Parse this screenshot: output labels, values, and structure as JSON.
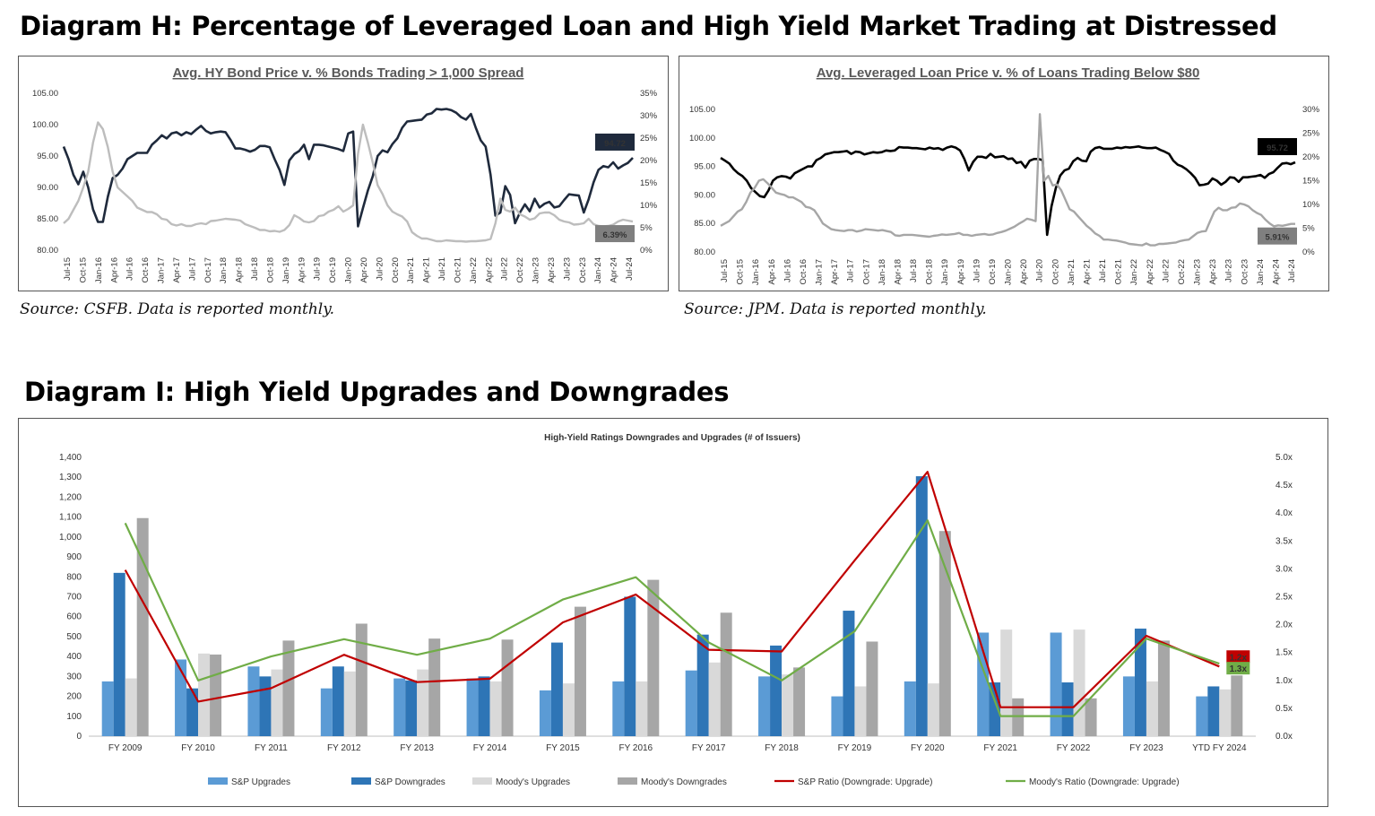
{
  "diagram_h": {
    "heading": "Diagram H: Percentage of Leveraged Loan and High Yield Market Trading at Distressed",
    "left": {
      "source": "Source: CSFB. Data is reported monthly."
    },
    "right": {
      "source": "Source: JPM. Data is reported monthly."
    }
  },
  "diagram_i": {
    "heading": "Diagram I: High Yield Upgrades and Downgrades"
  },
  "colors": {
    "hy_price": "#1f2a3c",
    "hy_pct": "#bdbdbd",
    "ll_price": "#000000",
    "ll_pct": "#a6a6a6",
    "sp_up": "#5b9bd5",
    "sp_down": "#2e75b6",
    "moody_up": "#d9d9d9",
    "moody_down": "#a6a6a6",
    "sp_ratio": "#c00000",
    "moody_ratio": "#70ad47"
  },
  "chart_data": [
    {
      "type": "line",
      "title": "Avg. HY Bond Price v. % Bonds Trading > 1,000 Spread",
      "x_ticks": [
        "Jul-15",
        "Oct-15",
        "Jan-16",
        "Apr-16",
        "Jul-16",
        "Oct-16",
        "Jan-17",
        "Apr-17",
        "Jul-17",
        "Oct-17",
        "Jan-18",
        "Apr-18",
        "Jul-18",
        "Oct-18",
        "Jan-19",
        "Apr-19",
        "Jul-19",
        "Oct-19",
        "Jan-20",
        "Apr-20",
        "Jul-20",
        "Oct-20",
        "Jan-21",
        "Apr-21",
        "Jul-21",
        "Oct-21",
        "Jan-22",
        "Apr-22",
        "Jul-22",
        "Oct-22",
        "Jan-23",
        "Apr-23",
        "Jul-23",
        "Oct-23",
        "Jan-24",
        "Apr-24",
        "Jul-24"
      ],
      "y_left": {
        "ticks": [
          "80.00",
          "85.00",
          "90.00",
          "95.00",
          "100.00",
          "105.00"
        ],
        "lim": [
          80,
          105
        ]
      },
      "y_right": {
        "ticks": [
          "0%",
          "5%",
          "10%",
          "15%",
          "20%",
          "25%",
          "30%",
          "35%"
        ],
        "lim": [
          0,
          35
        ]
      },
      "grid": false,
      "series": [
        {
          "axis": "left",
          "color": "#1f2a3c",
          "end_label": "94.72",
          "values": [
            96.5,
            94.5,
            92,
            90.5,
            92.5,
            90,
            86.5,
            84.5,
            84.5,
            88.5,
            91.5,
            92,
            93,
            94.5,
            95,
            95.5,
            95.5,
            95.5,
            96.8,
            97.5,
            98.3,
            97.8,
            98.6,
            98.8,
            98.3,
            98.8,
            98.5,
            99.2,
            99.8,
            99,
            98.6,
            98.8,
            98.9,
            98.8,
            97.6,
            96.2,
            96.2,
            96.0,
            95.7,
            96.0,
            96.6,
            96.6,
            96.4,
            94.5,
            92.8,
            90.4,
            94.3,
            95.3,
            95.8,
            96.8,
            94.5,
            96.8,
            96.8,
            96.7,
            96.5,
            96.3,
            96.1,
            95.8,
            98.6,
            98.9,
            83.8,
            86.7,
            89.5,
            91.8,
            95.0,
            95.9,
            95.6,
            96.9,
            97.8,
            99.5,
            100.5,
            100.6,
            100.7,
            100.8,
            101.6,
            101.8,
            102.5,
            102.4,
            102.5,
            102.3,
            101.9,
            101.2,
            100.8,
            101.7,
            99.5,
            97.5,
            96.5,
            92.0,
            85.5,
            86.0,
            90.2,
            88.8,
            84.3,
            86.0,
            87.3,
            86.2,
            88.2,
            86.8,
            87.4,
            87.7,
            86.8,
            87.0,
            88.0,
            88.9,
            88.8,
            88.7,
            86.0,
            88.1,
            90.8,
            92.8,
            93.4,
            93.2,
            94.0,
            93.0,
            93.5,
            93.9,
            94.72
          ]
        },
        {
          "axis": "right",
          "color": "#bdbdbd",
          "end_label": "6.39%",
          "values": [
            6.0,
            7.0,
            9.0,
            11.0,
            14.0,
            17.5,
            24.0,
            28.5,
            27.0,
            23.0,
            17.5,
            14.0,
            13.0,
            12.0,
            11.0,
            9.5,
            9.0,
            8.5,
            8.5,
            8.0,
            7.0,
            6.8,
            5.8,
            5.5,
            5.8,
            5.4,
            5.4,
            5.8,
            6.0,
            5.8,
            6.5,
            6.6,
            6.8,
            7.0,
            6.9,
            6.8,
            6.6,
            5.8,
            5.4,
            5.0,
            4.5,
            4.5,
            4.2,
            4.3,
            4.1,
            4.5,
            5.6,
            7.8,
            7.2,
            6.4,
            6.2,
            6.5,
            7.6,
            7.8,
            8.6,
            9.0,
            9.8,
            8.6,
            9.2,
            10.0,
            21.5,
            28.0,
            24.0,
            19.5,
            14.5,
            12.5,
            10.0,
            8.6,
            8.0,
            7.5,
            6.4,
            4.0,
            3.2,
            2.6,
            2.6,
            2.3,
            2.0,
            2.0,
            2.2,
            2.1,
            2.0,
            2.0,
            1.9,
            2.0,
            2.0,
            2.1,
            2.2,
            2.5,
            6.0,
            11.5,
            9.0,
            8.6,
            9.5,
            8.0,
            7.5,
            6.8,
            7.1,
            8.2,
            8.4,
            8.4,
            7.8,
            6.8,
            6.4,
            6.2,
            5.7,
            5.8,
            6.0,
            7.0,
            5.8,
            5.4,
            5.3,
            5.4,
            5.7,
            6.4,
            6.8,
            6.6,
            6.39
          ]
        }
      ]
    },
    {
      "type": "line",
      "title": "Avg. Leveraged Loan Price v. % of Loans Trading Below $80",
      "x_ticks": [
        "Jul-15",
        "Oct-15",
        "Jan-16",
        "Apr-16",
        "Jul-16",
        "Oct-16",
        "Jan-17",
        "Apr-17",
        "Jul-17",
        "Oct-17",
        "Jan-18",
        "Apr-18",
        "Jul-18",
        "Oct-18",
        "Jan-19",
        "Apr-19",
        "Jul-19",
        "Oct-19",
        "Jan-20",
        "Apr-20",
        "Jul-20",
        "Oct-20",
        "Jan-21",
        "Apr-21",
        "Jul-21",
        "Oct-21",
        "Jan-22",
        "Apr-22",
        "Jul-22",
        "Oct-22",
        "Jan-23",
        "Apr-23",
        "Jul-23",
        "Oct-23",
        "Jan-24",
        "Apr-24",
        "Jul-24"
      ],
      "y_left": {
        "ticks": [
          "80.00",
          "85.00",
          "90.00",
          "95.00",
          "100.00",
          "105.00"
        ],
        "lim": [
          80,
          105
        ]
      },
      "y_right": {
        "ticks": [
          "0%",
          "5%",
          "10%",
          "15%",
          "20%",
          "25%",
          "30%"
        ],
        "lim": [
          0,
          30
        ]
      },
      "grid": false,
      "series": [
        {
          "axis": "left",
          "color": "#000000",
          "end_label": "95.72",
          "values": [
            96.5,
            96.0,
            95.5,
            94.5,
            93.8,
            93.3,
            92.5,
            91.2,
            90.5,
            89.8,
            89.6,
            90.8,
            92.5,
            93.1,
            93.3,
            93.2,
            92.9,
            93.8,
            94.2,
            94.6,
            95.0,
            95.0,
            96.1,
            96.5,
            97.1,
            97.3,
            97.5,
            97.5,
            97.6,
            97.7,
            97.2,
            97.6,
            97.5,
            97.1,
            97.3,
            97.5,
            97.4,
            97.5,
            97.8,
            97.7,
            97.8,
            98.4,
            98.3,
            98.3,
            98.2,
            98.2,
            98.1,
            98.0,
            98.3,
            98.1,
            98.2,
            97.9,
            98.3,
            98.5,
            98.3,
            97.8,
            96.3,
            94.3,
            95.8,
            96.7,
            96.7,
            96.5,
            97.2,
            96.6,
            96.7,
            96.8,
            96.3,
            96.4,
            95.6,
            95.8,
            94.8,
            96.0,
            96.3,
            96.3,
            96.1,
            83.0,
            88.0,
            91.2,
            93.4,
            94.3,
            94.6,
            95.9,
            96.5,
            96.0,
            95.9,
            97.6,
            98.2,
            98.4,
            98.1,
            98.1,
            98.1,
            98.3,
            98.2,
            98.4,
            98.3,
            98.4,
            98.5,
            98.3,
            98.2,
            98.2,
            98.3,
            97.9,
            97.6,
            97.2,
            96.0,
            95.3,
            95.0,
            94.5,
            93.8,
            93.0,
            91.7,
            91.8,
            92.0,
            92.9,
            92.5,
            91.8,
            92.3,
            93.1,
            93.0,
            92.3,
            93.1,
            93.1,
            93.2,
            93.3,
            93.5,
            93.0,
            93.7,
            94.0,
            94.8,
            95.5,
            95.6,
            95.4,
            95.72
          ]
        },
        {
          "axis": "right",
          "color": "#a6a6a6",
          "end_label": "5.91%",
          "values": [
            5.5,
            6.0,
            6.5,
            7.5,
            8.5,
            9.0,
            10.5,
            12.5,
            13.5,
            15.0,
            15.3,
            14.5,
            13.5,
            12.5,
            12.2,
            12.0,
            11.5,
            11.5,
            11.0,
            10.5,
            9.5,
            9.3,
            8.8,
            7.5,
            6.0,
            5.4,
            4.8,
            4.6,
            4.5,
            4.4,
            4.6,
            4.6,
            4.3,
            4.5,
            4.8,
            4.7,
            4.6,
            4.5,
            4.6,
            4.4,
            4.2,
            3.5,
            3.4,
            3.6,
            3.6,
            3.6,
            3.5,
            3.4,
            3.3,
            3.2,
            3.4,
            3.5,
            3.7,
            3.6,
            3.7,
            3.8,
            4.0,
            3.6,
            3.6,
            3.4,
            3.6,
            3.7,
            3.8,
            3.6,
            3.7,
            4.0,
            4.2,
            4.5,
            4.9,
            5.3,
            5.9,
            6.4,
            7.0,
            6.8,
            6.5,
            29.0,
            15.0,
            16.0,
            14.0,
            14.2,
            13.0,
            11.0,
            9.0,
            8.5,
            7.5,
            6.5,
            5.5,
            4.8,
            3.9,
            3.4,
            2.6,
            2.6,
            2.5,
            2.4,
            2.2,
            2.0,
            1.7,
            1.6,
            1.5,
            1.4,
            1.8,
            1.4,
            1.4,
            1.7,
            1.7,
            1.8,
            1.9,
            2.0,
            2.3,
            2.5,
            2.6,
            3.3,
            4.0,
            4.3,
            4.4,
            6.5,
            8.5,
            9.3,
            8.8,
            8.8,
            9.3,
            9.4,
            10.2,
            10.0,
            9.6,
            8.8,
            8.2,
            7.8,
            6.8,
            6.0,
            5.4,
            5.6,
            5.5,
            5.7,
            5.9,
            5.91
          ]
        }
      ]
    },
    {
      "type": "bar",
      "title": "High-Yield Ratings Downgrades and Upgrades (# of Issuers)",
      "categories": [
        "FY 2009",
        "FY 2010",
        "FY 2011",
        "FY 2012",
        "FY 2013",
        "FY 2014",
        "FY 2015",
        "FY 2016",
        "FY 2017",
        "FY 2018",
        "FY 2019",
        "FY 2020",
        "FY 2021",
        "FY 2022",
        "FY 2023",
        "YTD FY 2024"
      ],
      "y_left": {
        "ticks": [
          "0",
          "100",
          "200",
          "300",
          "400",
          "500",
          "600",
          "700",
          "800",
          "900",
          "1,000",
          "1,100",
          "1,200",
          "1,300",
          "1,400"
        ],
        "lim": [
          0,
          1400
        ]
      },
      "y_right": {
        "ticks": [
          "0.0x",
          "0.5x",
          "1.0x",
          "1.5x",
          "2.0x",
          "2.5x",
          "3.0x",
          "3.5x",
          "4.0x",
          "4.5x",
          "5.0x"
        ],
        "lim": [
          0,
          5
        ]
      },
      "grid": false,
      "legend_position": "bottom",
      "series": [
        {
          "name": "S&P Upgrades",
          "kind": "bar",
          "color": "#5b9bd5",
          "values": [
            275,
            385,
            350,
            240,
            290,
            290,
            230,
            275,
            330,
            300,
            200,
            275,
            520,
            520,
            300,
            200
          ]
        },
        {
          "name": "S&P Downgrades",
          "kind": "bar",
          "color": "#2e75b6",
          "values": [
            820,
            240,
            300,
            350,
            280,
            300,
            470,
            700,
            510,
            455,
            630,
            1305,
            270,
            270,
            540,
            250
          ]
        },
        {
          "name": "Moody's Upgrades",
          "kind": "bar",
          "color": "#d9d9d9",
          "values": [
            290,
            415,
            335,
            325,
            335,
            275,
            265,
            275,
            370,
            310,
            250,
            265,
            535,
            535,
            275,
            235
          ]
        },
        {
          "name": "Moody's Downgrades",
          "kind": "bar",
          "color": "#a6a6a6",
          "values": [
            1095,
            410,
            480,
            565,
            490,
            485,
            650,
            785,
            620,
            345,
            475,
            1030,
            190,
            190,
            480,
            305
          ]
        },
        {
          "name": "S&P Ratio (Downgrade: Upgrade)",
          "kind": "line",
          "axis": "right",
          "color": "#c00000",
          "values": [
            2.98,
            0.62,
            0.86,
            1.46,
            0.97,
            1.03,
            2.04,
            2.54,
            1.55,
            1.52,
            3.15,
            4.74,
            0.52,
            0.52,
            1.8,
            1.25
          ],
          "end_label": "1.2x"
        },
        {
          "name": "Moody's Ratio (Downgrade: Upgrade)",
          "kind": "line",
          "axis": "right",
          "color": "#70ad47",
          "values": [
            3.82,
            1.0,
            1.43,
            1.74,
            1.46,
            1.75,
            2.45,
            2.85,
            1.68,
            1.0,
            1.88,
            3.87,
            0.36,
            0.36,
            1.75,
            1.3
          ],
          "end_label": "1.3x"
        }
      ]
    }
  ]
}
